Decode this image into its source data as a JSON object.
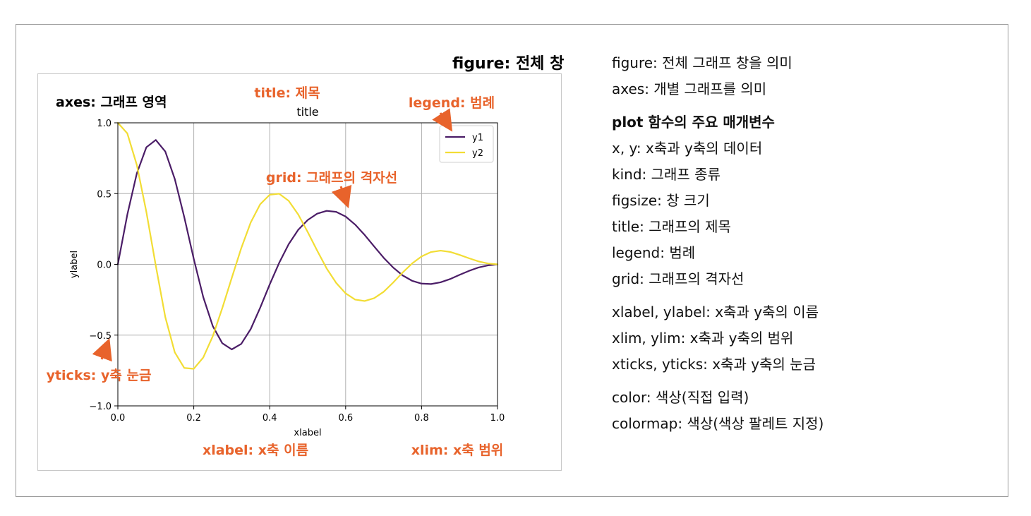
{
  "figure_label": "figure: 전체 창",
  "annotations": {
    "axes": "axes: 그래프 영역",
    "title": "title: 제목",
    "legend": "legend: 범례",
    "grid": "grid: 그래프의 격자선",
    "yticks": "yticks: y축 눈금",
    "xlabel": "xlabel: x축 이름",
    "xlim": "xlim: x축 범위",
    "accent_color": "#e8632b",
    "arrow_icon": "arrow-icon"
  },
  "chart_data": {
    "type": "line",
    "title": "title",
    "xlabel": "xlabel",
    "ylabel": "ylabel",
    "xlim": [
      0.0,
      1.0
    ],
    "ylim": [
      -1.0,
      1.0
    ],
    "xticks": [
      "0.0",
      "0.2",
      "0.4",
      "0.6",
      "0.8",
      "1.0"
    ],
    "yticks": [
      "1.0",
      "0.5",
      "0.0",
      "−0.5",
      "−1.0"
    ],
    "grid": true,
    "legend_position": "top-right",
    "x": [
      0.0,
      0.025,
      0.05,
      0.075,
      0.1,
      0.125,
      0.15,
      0.175,
      0.2,
      0.225,
      0.25,
      0.275,
      0.3,
      0.325,
      0.35,
      0.375,
      0.4,
      0.425,
      0.45,
      0.475,
      0.5,
      0.525,
      0.55,
      0.575,
      0.6,
      0.625,
      0.65,
      0.675,
      0.7,
      0.725,
      0.75,
      0.775,
      0.8,
      0.825,
      0.85,
      0.875,
      0.9,
      0.925,
      0.95,
      0.975,
      1.0
    ],
    "series": [
      {
        "name": "y1",
        "color": "#4b1d67",
        "values": [
          0.0,
          0.352,
          0.643,
          0.827,
          0.879,
          0.797,
          0.603,
          0.333,
          0.038,
          -0.232,
          -0.436,
          -0.557,
          -0.601,
          -0.562,
          -0.457,
          -0.306,
          -0.142,
          0.011,
          0.143,
          0.244,
          0.313,
          0.358,
          0.378,
          0.371,
          0.338,
          0.281,
          0.208,
          0.127,
          0.047,
          -0.022,
          -0.078,
          -0.116,
          -0.136,
          -0.139,
          -0.127,
          -0.104,
          -0.074,
          -0.046,
          -0.022,
          -0.007,
          0.0
        ]
      },
      {
        "name": "y2",
        "color": "#f2dd35",
        "values": [
          1.0,
          0.925,
          0.702,
          0.372,
          -0.01,
          -0.373,
          -0.622,
          -0.732,
          -0.738,
          -0.658,
          -0.508,
          -0.31,
          -0.096,
          0.114,
          0.296,
          0.425,
          0.492,
          0.499,
          0.449,
          0.353,
          0.229,
          0.097,
          -0.029,
          -0.131,
          -0.205,
          -0.249,
          -0.259,
          -0.239,
          -0.194,
          -0.129,
          -0.058,
          0.006,
          0.056,
          0.087,
          0.097,
          0.088,
          0.067,
          0.043,
          0.021,
          0.006,
          0.0
        ]
      }
    ]
  },
  "description": {
    "intro": [
      "figure: 전체 그래프 창을 의미",
      "axes: 개별 그래프를 의미"
    ],
    "heading": "plot 함수의 주요 매개변수",
    "params1": [
      "x, y: x축과 y축의 데이터",
      "kind: 그래프 종류",
      "figsize: 창 크기",
      "title: 그래프의 제목",
      "legend: 범례",
      "grid: 그래프의 격자선"
    ],
    "params2": [
      "xlabel, ylabel: x축과 y축의 이름",
      "xlim, ylim: x축과 y축의 범위",
      "xticks, yticks: x축과 y축의 눈금"
    ],
    "params3": [
      "color: 색상(직접 입력)",
      "colormap: 색상(색상 팔레트 지정)"
    ]
  }
}
